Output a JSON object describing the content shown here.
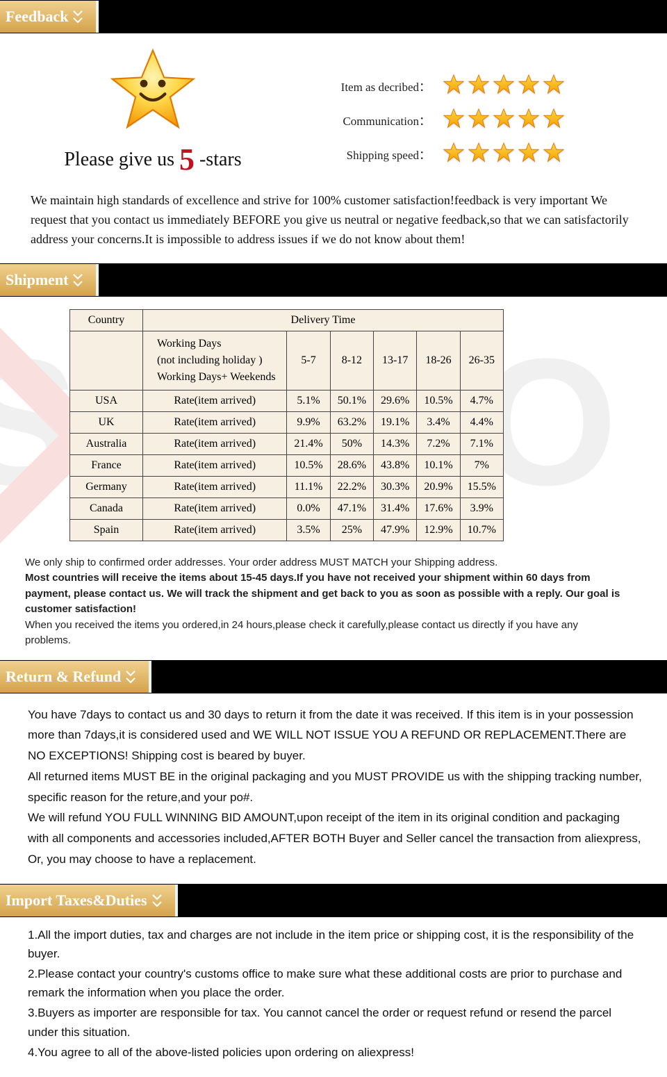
{
  "colors": {
    "tab_grad_top": "#f0d090",
    "tab_grad_bottom": "#d4a34a",
    "tab_text": "#ffffff",
    "header_bg": "#000000",
    "star_fill_top": "#ffd84a",
    "star_fill_bottom": "#f4a000",
    "star_stroke": "#e07b00",
    "five_color": "#c1121f",
    "table_bg": "#f6efe2",
    "table_border": "#444444",
    "body_text": "#111111"
  },
  "sections": {
    "feedback": {
      "tab": "Feedback",
      "please_prefix": "Please give us ",
      "five": "5",
      "please_suffix": " -stars",
      "ratings": [
        {
          "label": "Item as decribed：",
          "stars": 5
        },
        {
          "label": "Communication：",
          "stars": 5
        },
        {
          "label": "Shipping speed：",
          "stars": 5
        }
      ],
      "paragraph": "We maintain high standards of excellence and strive for 100% customer satisfaction!feedback is very important We request that you contact us immediately BEFORE you give us neutral or negative feedback,so that we can satisfactorily address your concerns.It is impossible to address issues if we do not know about them!"
    },
    "shipment": {
      "tab": "Shipment",
      "table": {
        "header_country": "Country",
        "header_delivery": "Delivery Time",
        "workdays_lines": [
          "Working Days",
          "(not including holiday )",
          "Working Days+ Weekends"
        ],
        "ranges": [
          "5-7",
          "8-12",
          "13-17",
          "18-26",
          "26-35"
        ],
        "rate_label": "Rate(item arrived)",
        "rows": [
          {
            "country": "USA",
            "vals": [
              "5.1%",
              "50.1%",
              "29.6%",
              "10.5%",
              "4.7%"
            ]
          },
          {
            "country": "UK",
            "vals": [
              "9.9%",
              "63.2%",
              "19.1%",
              "3.4%",
              "4.4%"
            ]
          },
          {
            "country": "Australia",
            "vals": [
              "21.4%",
              "50%",
              "14.3%",
              "7.2%",
              "7.1%"
            ]
          },
          {
            "country": "France",
            "vals": [
              "10.5%",
              "28.6%",
              "43.8%",
              "10.1%",
              "7%"
            ]
          },
          {
            "country": "Germany",
            "vals": [
              "11.1%",
              "22.2%",
              "30.3%",
              "20.9%",
              "15.5%"
            ]
          },
          {
            "country": "Canada",
            "vals": [
              "0.0%",
              "47.1%",
              "31.4%",
              "17.6%",
              "3.9%"
            ]
          },
          {
            "country": "Spain",
            "vals": [
              "3.5%",
              "25%",
              "47.9%",
              "12.9%",
              "10.7%"
            ]
          }
        ]
      },
      "note_1": "We only ship to confirmed order addresses. Your order address MUST MATCH your Shipping address.",
      "note_2": "Most countries will receive the items about 15-45 days.If you have not received your shipment within 60 days from payment, please contact us. We will track the shipment and get back to you as soon as possible with a reply. Our goal is customer satisfaction!",
      "note_3": "When you received the items you ordered,in 24 hours,please check it carefully,please contact us directly if you have any problems."
    },
    "return": {
      "tab": "Return & Refund",
      "p1": "You have 7days to contact us and 30 days to return it from the date it was received. If this item is in your possession more than 7days,it is considered used and WE WILL NOT ISSUE YOU A REFUND OR REPLACEMENT.There are  NO EXCEPTIONS! Shipping cost is beared by buyer.",
      "p2": "All returned items MUST BE in the original packaging and you MUST PROVIDE us with the shipping tracking number, specific reason for the reture,and your po#.",
      "p3": "We will refund YOU FULL WINNING BID AMOUNT,upon receipt of the item in its original condition and packaging with all components and accessories included,AFTER BOTH Buyer and Seller cancel the transaction from aliexpress, Or, you may choose to have a replacement."
    },
    "taxes": {
      "tab": "Import Taxes&Duties",
      "items": [
        "1.All the import duties, tax and charges are not include in the item price or shipping cost, it is the responsibility of the buyer.",
        "2.Please contact your country's customs office to make sure what these additional costs are prior to purchase and remark the information when you place the order.",
        "3.Buyers as importer are responsible for tax. You cannot cancel the order or request refund or resend the parcel under this situation.",
        "4.You agree to all of the above-listed policies upon ordering on aliexpress!"
      ]
    }
  }
}
